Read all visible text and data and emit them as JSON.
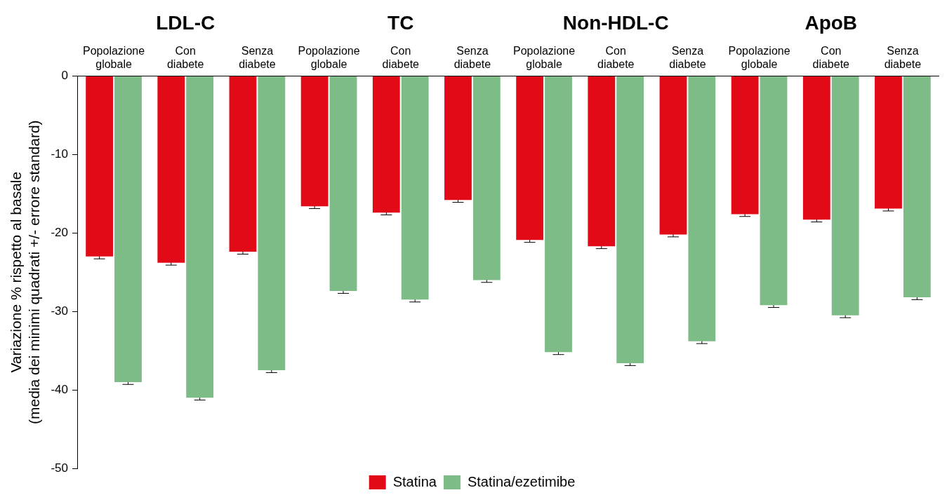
{
  "chart_data": {
    "type": "bar",
    "ylabel": "Variazione % rispetto al basale (media dei minimi quadrati +/- errore standard)",
    "categories": [
      "Popolazione globale",
      "Con diabete",
      "Senza diabete",
      "Popolazione globale",
      "Con diabete",
      "Senza diabete",
      "Popolazione globale",
      "Con diabete",
      "Senza diabete",
      "Popolazione globale",
      "Con diabete",
      "Senza diabete"
    ],
    "annotations": [
      "LDL-C",
      "TC",
      "Non-HDL-C",
      "ApoB"
    ],
    "series": [
      {
        "name": "Statina",
        "color": "#e30a17",
        "values": [
          -23.0,
          -23.8,
          -22.4,
          -16.6,
          -17.4,
          -15.8,
          -20.9,
          -21.7,
          -20.2,
          -17.6,
          -18.3,
          -16.9
        ],
        "errors": [
          0.3,
          0.3,
          0.3,
          0.3,
          0.3,
          0.3,
          0.3,
          0.3,
          0.3,
          0.3,
          0.3,
          0.3
        ]
      },
      {
        "name": "Statina/ezetimibe",
        "color": "#7dbb87",
        "values": [
          -39.0,
          -41.0,
          -37.5,
          -27.4,
          -28.5,
          -26.0,
          -35.2,
          -36.6,
          -33.8,
          -29.2,
          -30.5,
          -28.2
        ],
        "errors": [
          0.3,
          0.3,
          0.3,
          0.3,
          0.3,
          0.3,
          0.3,
          0.3,
          0.3,
          0.3,
          0.3,
          0.3
        ]
      }
    ],
    "ylim": [
      -50,
      0
    ],
    "yticks": [
      -50,
      -40,
      -30,
      -20,
      -10,
      0
    ],
    "grid": false,
    "legend": "bottom"
  }
}
